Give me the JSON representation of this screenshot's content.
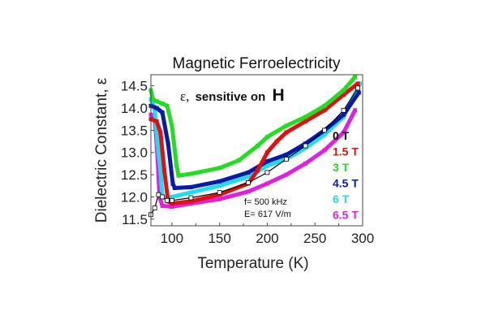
{
  "chart_data": {
    "type": "line",
    "title": "Magnetic Ferroelectricity",
    "xlabel": "Temperature (K)",
    "ylabel": "Dielectric Constant, ε",
    "xlim": [
      78,
      300
    ],
    "ylim": [
      11.35,
      14.75
    ],
    "xticks": [
      100,
      150,
      200,
      250,
      300
    ],
    "xtick_labels": [
      "100",
      "150",
      "200",
      "250",
      "300"
    ],
    "yticks": [
      11.5,
      12.0,
      12.5,
      13.0,
      13.5,
      14.0,
      14.5
    ],
    "ytick_labels": [
      "11.5",
      "12.0",
      "12.5",
      "13.0",
      "13.5",
      "14.0",
      "14.5"
    ],
    "grid": false,
    "legend_position": "right",
    "annotations": {
      "headline_symbol": "ε,",
      "headline_text": "sensitive on",
      "headline_bold": "H",
      "frequency": "f= 500 kHz",
      "field": "E= 617 V/m"
    },
    "series": [
      {
        "name": "0 T",
        "label": "0 T",
        "color": "#000000",
        "x": [
          78,
          82,
          86,
          90,
          95,
          100,
          120,
          150,
          180,
          200,
          220,
          240,
          260,
          280,
          295
        ],
        "y": [
          11.6,
          11.75,
          12.05,
          12.0,
          11.92,
          11.92,
          11.98,
          12.1,
          12.32,
          12.55,
          12.85,
          13.15,
          13.5,
          13.95,
          14.45
        ]
      },
      {
        "name": "1.5 T",
        "label": "1.5 T",
        "color": "#e01010",
        "x": [
          78,
          84,
          88,
          92,
          96,
          100,
          120,
          150,
          180,
          190,
          200,
          210,
          220,
          240,
          260,
          280,
          295
        ],
        "y": [
          13.75,
          13.7,
          13.45,
          12.6,
          11.9,
          11.85,
          11.9,
          12.05,
          12.3,
          12.6,
          13.0,
          13.25,
          13.45,
          13.7,
          13.95,
          14.3,
          14.55
        ]
      },
      {
        "name": "3 T",
        "label": "3 T",
        "color": "#22dd22",
        "x": [
          78,
          80,
          84,
          90,
          95,
          100,
          105,
          107,
          120,
          150,
          170,
          190,
          200,
          220,
          240,
          260,
          280,
          292
        ],
        "y": [
          14.4,
          14.2,
          14.15,
          14.1,
          14.05,
          13.6,
          12.7,
          12.48,
          12.52,
          12.65,
          12.82,
          13.15,
          13.35,
          13.6,
          13.8,
          14.05,
          14.4,
          14.7
        ]
      },
      {
        "name": "4.5 T",
        "label": "4.5 T",
        "color": "#0a1aa8",
        "x": [
          78,
          84,
          90,
          96,
          101,
          103,
          120,
          150,
          180,
          200,
          220,
          240,
          260,
          280,
          296
        ],
        "y": [
          14.05,
          14.0,
          13.9,
          13.2,
          12.3,
          12.2,
          12.22,
          12.35,
          12.55,
          12.8,
          12.95,
          13.2,
          13.5,
          13.85,
          14.35
        ]
      },
      {
        "name": "6 T",
        "label": "6 T",
        "color": "#22dcec",
        "x": [
          78,
          82,
          85,
          88,
          90,
          92,
          100,
          120,
          150,
          180,
          200,
          220,
          240,
          260,
          280,
          297
        ],
        "y": [
          14.2,
          14.0,
          13.2,
          12.6,
          12.0,
          11.98,
          12.0,
          12.1,
          12.25,
          12.45,
          12.7,
          12.85,
          13.1,
          13.4,
          13.8,
          14.55
        ]
      },
      {
        "name": "6.5 T",
        "label": "6.5 T",
        "color": "#e020e0",
        "x": [
          78,
          82,
          85,
          87,
          90,
          100,
          120,
          150,
          180,
          200,
          220,
          240,
          260,
          280,
          292
        ],
        "y": [
          13.85,
          13.8,
          12.9,
          12.0,
          11.8,
          11.78,
          11.85,
          11.95,
          12.12,
          12.3,
          12.5,
          12.75,
          13.05,
          13.45,
          13.95
        ]
      }
    ]
  }
}
